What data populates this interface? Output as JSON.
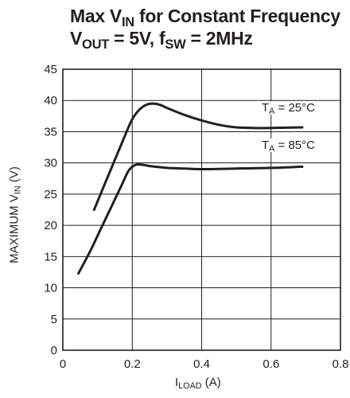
{
  "title_line1": {
    "text": "Max V",
    "sub": "IN",
    "rest": " for Constant Frequency"
  },
  "title_line2": {
    "a": "V",
    "a_sub": "OUT",
    "b": " = 5V, f",
    "b_sub": "SW",
    "c": " = 2MHz"
  },
  "chart_data": {
    "type": "line",
    "xlabel": {
      "text": "I",
      "sub": "LOAD",
      "unit": " (A)"
    },
    "ylabel": {
      "text": "MAXIMUM V",
      "sub": "IN",
      "unit": " (V)"
    },
    "xlim": [
      0,
      0.8
    ],
    "ylim": [
      0,
      45
    ],
    "xticks": [
      "0",
      "0.2",
      "0.4",
      "0.6",
      "0.8"
    ],
    "yticks": [
      "0",
      "5",
      "10",
      "15",
      "20",
      "25",
      "30",
      "35",
      "40",
      "45"
    ],
    "grid": true,
    "series": [
      {
        "name": "T_A = 25°C",
        "label": {
          "a": "T",
          "sub": "A",
          "b": " = 25°C"
        },
        "x": [
          0.09,
          0.12,
          0.15,
          0.18,
          0.2,
          0.22,
          0.24,
          0.26,
          0.28,
          0.3,
          0.35,
          0.4,
          0.45,
          0.5,
          0.55,
          0.6,
          0.69
        ],
        "y": [
          22.5,
          26.5,
          30.5,
          34.5,
          37.0,
          38.5,
          39.3,
          39.5,
          39.3,
          38.8,
          37.7,
          36.8,
          36.1,
          35.7,
          35.6,
          35.6,
          35.7
        ]
      },
      {
        "name": "T_A = 85°C",
        "label": {
          "a": "T",
          "sub": "A",
          "b": " = 85°C"
        },
        "x": [
          0.045,
          0.08,
          0.11,
          0.14,
          0.17,
          0.19,
          0.21,
          0.23,
          0.25,
          0.3,
          0.35,
          0.4,
          0.5,
          0.6,
          0.69
        ],
        "y": [
          12.3,
          16.0,
          19.5,
          23.0,
          26.5,
          28.8,
          29.7,
          29.7,
          29.5,
          29.2,
          29.1,
          29.0,
          29.1,
          29.2,
          29.4
        ]
      }
    ]
  }
}
